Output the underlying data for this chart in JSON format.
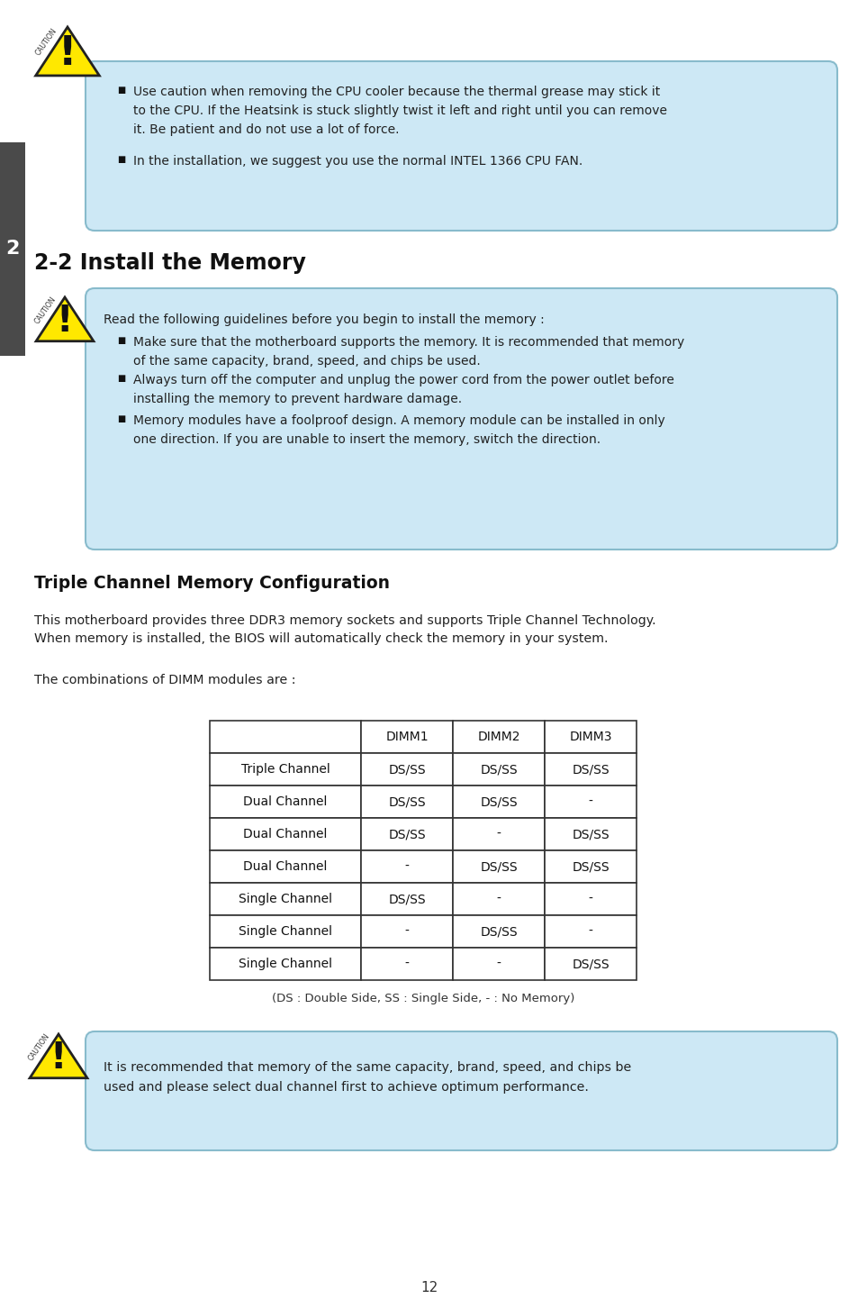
{
  "page_bg": "#ffffff",
  "page_num": "12",
  "sidebar_color": "#4a4a4a",
  "sidebar_text": "2",
  "light_blue": "#cde8f5",
  "box_border": "#88bbcc",
  "caution_yellow": "#FFE800",
  "caution_outline": "#222222",
  "text_color": "#222222",
  "section_title": "2-2 Install the Memory",
  "section_title2": "Triple Channel Memory Configuration",
  "box1_bullet1": "Use caution when removing the CPU cooler because the thermal grease may stick it\nto the CPU. If the Heatsink is stuck slightly twist it left and right until you can remove\nit. Be patient and do not use a lot of force.",
  "box1_bullet2": "In the installation, we suggest you use the normal INTEL 1366 CPU FAN.",
  "box2_intro": "Read the following guidelines before you begin to install the memory :",
  "box2_bullet1": "Make sure that the motherboard supports the memory. It is recommended that memory\nof the same capacity, brand, speed, and chips be used.",
  "box2_bullet2": "Always turn off the computer and unplug the power cord from the power outlet before\ninstalling the memory to prevent hardware damage.",
  "box2_bullet3": "Memory modules have a foolproof design. A memory module can be installed in only\none direction. If you are unable to insert the memory, switch the direction.",
  "para1_line1": "This motherboard provides three DDR3 memory sockets and supports Triple Channel Technology.",
  "para1_line2": "When memory is installed, the BIOS will automatically check the memory in your system.",
  "para2": "The combinations of DIMM modules are :",
  "table_headers": [
    "",
    "DIMM1",
    "DIMM2",
    "DIMM3"
  ],
  "table_rows": [
    [
      "Triple Channel",
      "DS/SS",
      "DS/SS",
      "DS/SS"
    ],
    [
      "Dual Channel",
      "DS/SS",
      "DS/SS",
      "-"
    ],
    [
      "Dual Channel",
      "DS/SS",
      "-",
      "DS/SS"
    ],
    [
      "Dual Channel",
      "-",
      "DS/SS",
      "DS/SS"
    ],
    [
      "Single Channel",
      "DS/SS",
      "-",
      "-"
    ],
    [
      "Single Channel",
      "-",
      "DS/SS",
      "-"
    ],
    [
      "Single Channel",
      "-",
      "-",
      "DS/SS"
    ]
  ],
  "table_note": "(DS : Double Side, SS : Single Side, - : No Memory)",
  "box3_line1": "It is recommended that memory of the same capacity, brand, speed, and chips be",
  "box3_line2": "used and please select dual channel first to achieve optimum performance."
}
